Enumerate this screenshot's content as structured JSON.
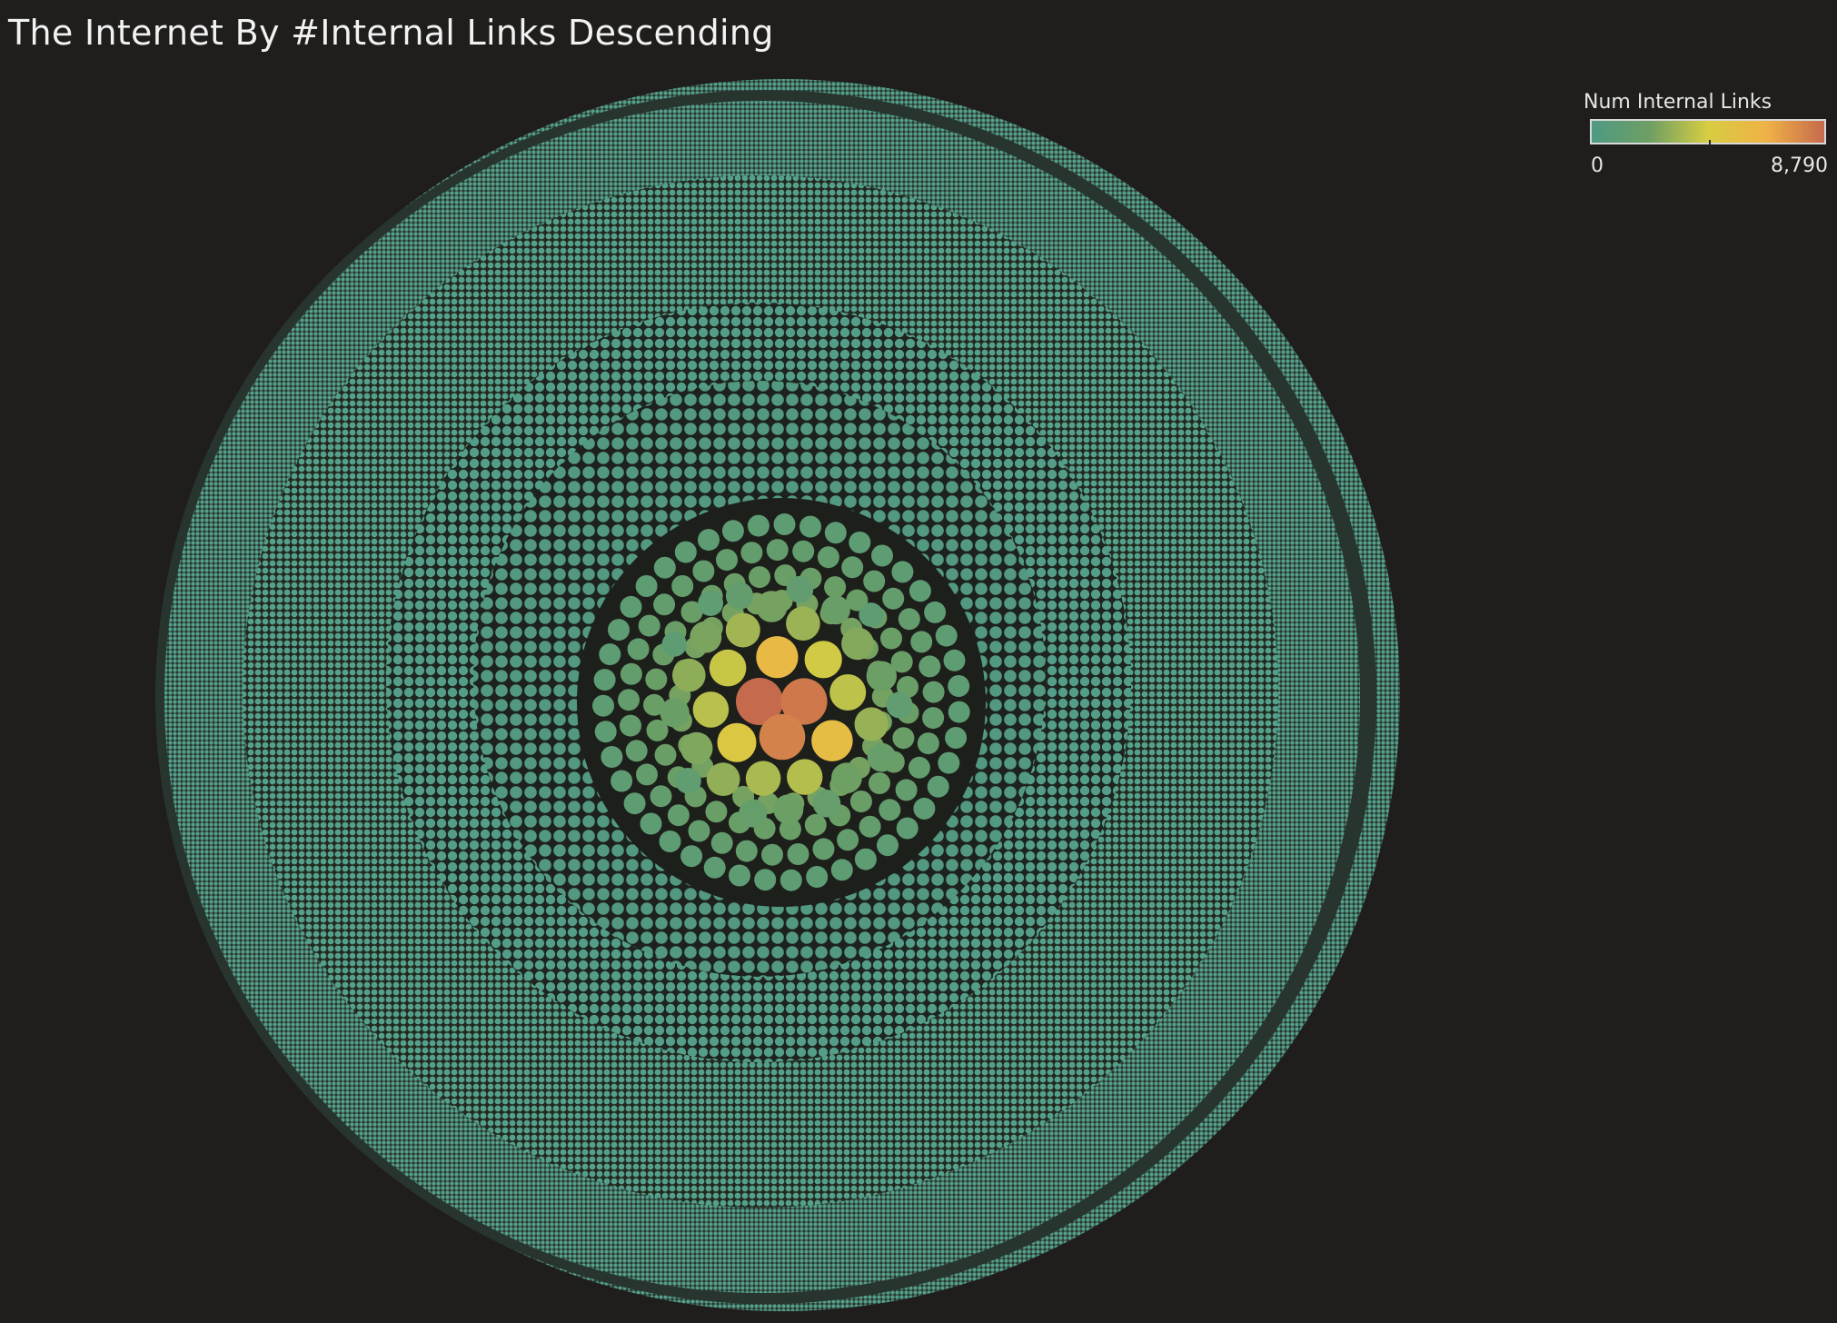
{
  "chart_data": {
    "type": "packed-bubble",
    "title": "The Internet By #Internal Links Descending",
    "measure": "Num Internal Links",
    "color_scale": {
      "min": 0,
      "max": 8790,
      "min_label": "0",
      "max_label": "8,790",
      "stops": [
        "#4e9a84",
        "#6e9f63",
        "#d7cd42",
        "#efb246",
        "#c66a4d"
      ]
    },
    "center_values": [
      8790,
      8450,
      8200,
      6400,
      6100,
      5300,
      4700,
      4500,
      4300,
      4200,
      4100,
      3900,
      3700,
      3600,
      3500,
      3400,
      3300,
      3100,
      3000,
      2900,
      2800,
      2600,
      2500,
      2400,
      2300,
      2200,
      2100,
      2000,
      1900,
      1800,
      1700,
      1600,
      1500,
      1400,
      1300,
      1200
    ]
  },
  "legend": {
    "title": "Num Internal Links",
    "min_label": "0",
    "max_label": "8,790"
  }
}
